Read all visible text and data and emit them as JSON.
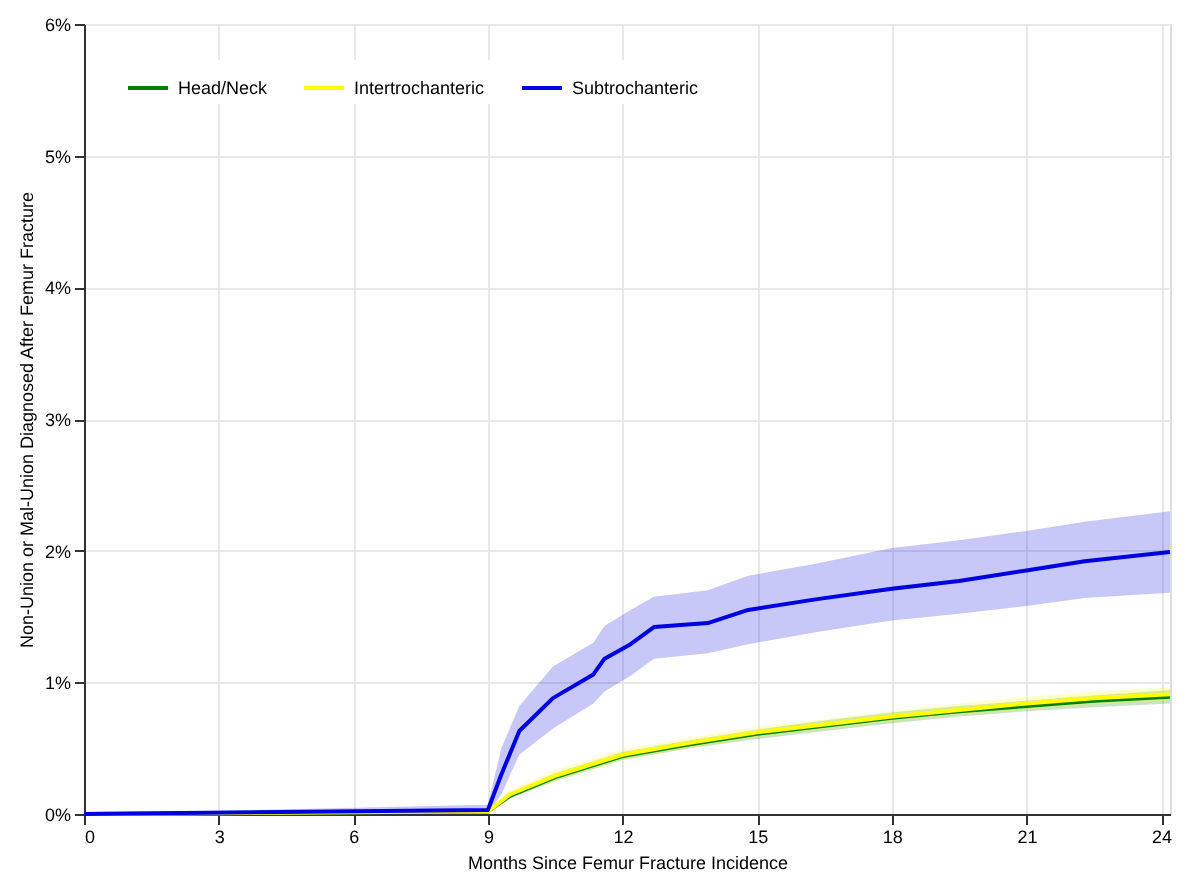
{
  "chart_data": {
    "type": "line",
    "xlabel": "Months Since Femur Fracture Incidence",
    "ylabel": "Non-Union or Mal-Union Diagnosed After Femur Fracture",
    "xlim": [
      0,
      24.2
    ],
    "xticks": [
      0,
      3,
      6,
      9,
      12,
      15,
      18,
      21,
      24
    ],
    "ylim": [
      0,
      6
    ],
    "yticks": [
      {
        "value": 0,
        "label": "0%"
      },
      {
        "value": 1,
        "label": "1%"
      },
      {
        "value": 2,
        "label": "2%"
      },
      {
        "value": 3,
        "label": "3%"
      },
      {
        "value": 4,
        "label": "4%"
      },
      {
        "value": 5,
        "label": "5%"
      },
      {
        "value": 6,
        "label": "6%"
      }
    ],
    "grid": true,
    "legend": "top left",
    "line_style": "solid",
    "marker": "none",
    "series": [
      {
        "name": "Head/Neck",
        "color": "#008000",
        "x": [
          0,
          9,
          9.5,
          10.5,
          12,
          13.5,
          15,
          16.5,
          18,
          19.5,
          21,
          22.5,
          24.2
        ],
        "values": [
          0,
          0.02,
          0.14,
          0.28,
          0.44,
          0.53,
          0.61,
          0.67,
          0.73,
          0.78,
          0.82,
          0.86,
          0.89
        ],
        "lower": [
          0,
          0.01,
          0.12,
          0.25,
          0.41,
          0.5,
          0.57,
          0.63,
          0.69,
          0.74,
          0.78,
          0.81,
          0.84
        ],
        "upper": [
          0,
          0.03,
          0.16,
          0.31,
          0.47,
          0.56,
          0.64,
          0.71,
          0.77,
          0.82,
          0.86,
          0.9,
          0.94
        ]
      },
      {
        "name": "Intertrochanteric",
        "color": "#ffff00",
        "x": [
          0,
          9,
          9.5,
          10.5,
          12,
          13.5,
          15,
          16.5,
          18,
          19.5,
          21,
          22.5,
          24.2
        ],
        "values": [
          0,
          0.02,
          0.15,
          0.29,
          0.45,
          0.54,
          0.62,
          0.68,
          0.74,
          0.79,
          0.84,
          0.88,
          0.91
        ],
        "lower": [
          0,
          0.01,
          0.12,
          0.25,
          0.41,
          0.5,
          0.58,
          0.64,
          0.7,
          0.75,
          0.79,
          0.83,
          0.86
        ],
        "upper": [
          0,
          0.03,
          0.18,
          0.33,
          0.49,
          0.58,
          0.66,
          0.72,
          0.78,
          0.84,
          0.89,
          0.93,
          0.96
        ]
      },
      {
        "name": "Subtrochanteric",
        "color": "#0000e0",
        "x": [
          0,
          9,
          9.3,
          9.7,
          10.45,
          11.35,
          11.6,
          12.18,
          12.7,
          13.9,
          14.8,
          16.3,
          18,
          19.5,
          21,
          22.3,
          24.2
        ],
        "values": [
          0,
          0.03,
          0.3,
          0.63,
          0.88,
          1.06,
          1.18,
          1.29,
          1.42,
          1.45,
          1.55,
          1.63,
          1.71,
          1.77,
          1.85,
          1.92,
          1.99
        ],
        "lower": [
          0,
          0.0,
          0.15,
          0.45,
          0.65,
          0.84,
          0.93,
          1.05,
          1.18,
          1.22,
          1.29,
          1.38,
          1.47,
          1.52,
          1.58,
          1.64,
          1.68
        ],
        "upper": [
          0,
          0.07,
          0.5,
          0.82,
          1.12,
          1.3,
          1.43,
          1.55,
          1.65,
          1.7,
          1.81,
          1.9,
          2.02,
          2.08,
          2.15,
          2.22,
          2.3
        ]
      }
    ]
  }
}
